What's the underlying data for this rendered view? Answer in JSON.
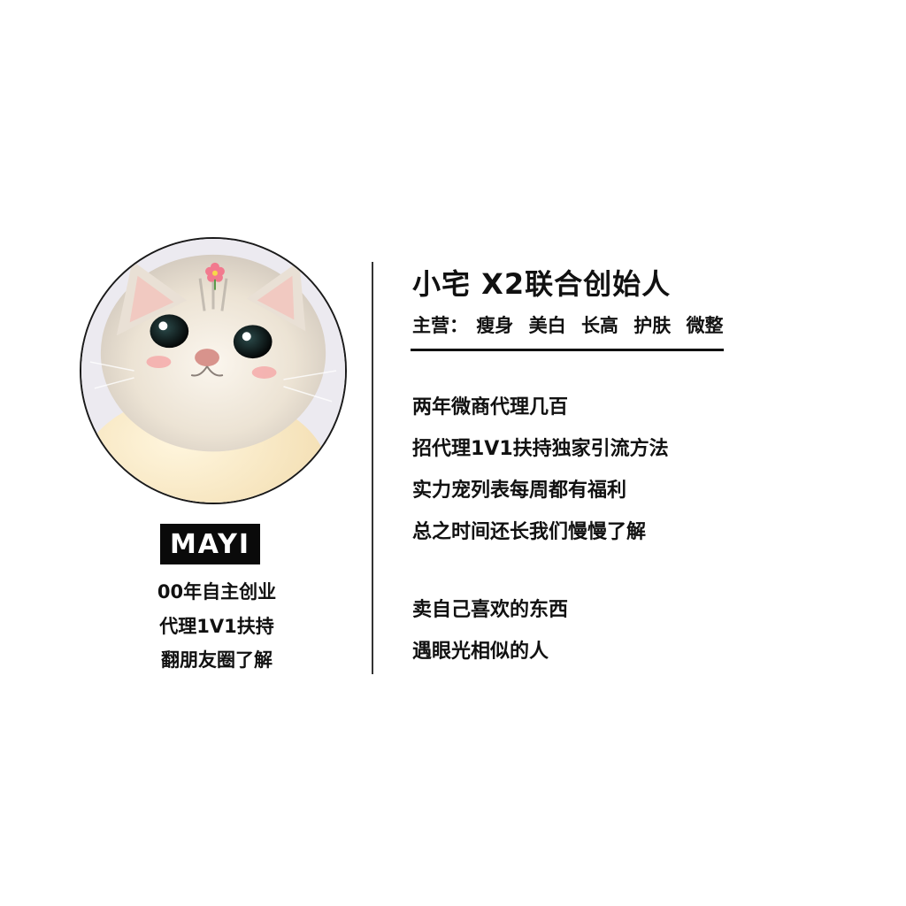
{
  "profile": {
    "avatar_icon": "cat-photo-icon",
    "name_badge": "MAYI",
    "left_lines": [
      "00年自主创业",
      "代理1V1扶持",
      "翻朋友圈了解"
    ]
  },
  "info": {
    "title": "小宅 X2联合创始人",
    "subtitle_label": "主营：",
    "subtitle_items": [
      "瘦身",
      "美白",
      "长高",
      "护肤",
      "微整"
    ],
    "intro_lines": [
      "两年微商代理几百",
      "招代理1V1扶持独家引流方法",
      "实力宠列表每周都有福利",
      "总之时间还长我们慢慢了解"
    ],
    "motto_lines": [
      "卖自己喜欢的东西",
      "遇眼光相似的人"
    ]
  },
  "colors": {
    "background": "#ffffff",
    "text": "#111111",
    "badge_bg": "#0a0a0a",
    "badge_text": "#ffffff"
  }
}
